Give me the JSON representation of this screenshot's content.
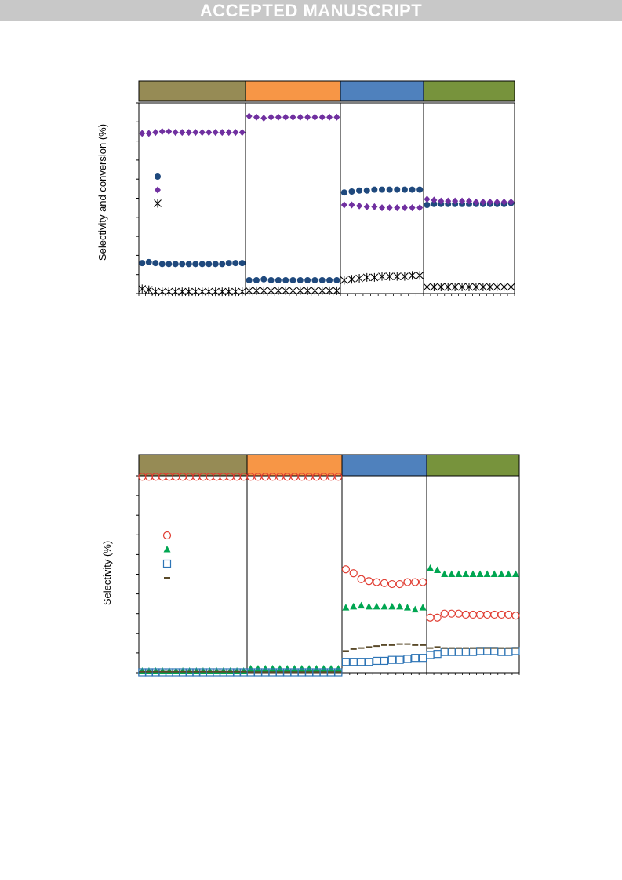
{
  "banner": {
    "text": "ACCEPTED MANUSCRIPT"
  },
  "colors": {
    "panel1": "#968b55",
    "panel2": "#f79646",
    "panel3": "#4f81bd",
    "panel4": "#77933c",
    "conversion_marker": "#1f497d",
    "diamond_marker": "#7030a0",
    "star_marker": "#000000",
    "circle_open": "#e03c31",
    "triangle": "#00a651",
    "square_open": "#2e75b6",
    "dash": "#5a4a2a"
  },
  "chart_data": [
    {
      "type": "scatter",
      "ylabel": "Selectivity and conversion (%)",
      "ylim": [
        0,
        100
      ],
      "grid": false,
      "panels": 4,
      "series": [
        {
          "marker": "circle-filled",
          "color": "#1f497d",
          "panels": [
            [
              16,
              16.5,
              16,
              15.5,
              15.5,
              15.5,
              15.5,
              15.5,
              15.5,
              15.5,
              15.5,
              15.5,
              15.5,
              16,
              16,
              16
            ],
            [
              7,
              7,
              7.5,
              7,
              7,
              7,
              7,
              7,
              7,
              7,
              7,
              7,
              7
            ],
            [
              53,
              53.5,
              54,
              54,
              54.5,
              54.5,
              54.5,
              54.5,
              54.5,
              54.5,
              54.5
            ],
            [
              46.5,
              47,
              47,
              47,
              47,
              47,
              47,
              47,
              47,
              47,
              47,
              47,
              47.5
            ]
          ]
        },
        {
          "marker": "diamond",
          "color": "#7030a0",
          "panels": [
            [
              84,
              84,
              84.5,
              85,
              85,
              84.5,
              84.5,
              84.5,
              84.5,
              84.5,
              84.5,
              84.5,
              84.5,
              84.5,
              84.5,
              84.5
            ],
            [
              93,
              92.5,
              92,
              92.5,
              92.5,
              92.5,
              92.5,
              92.5,
              92.5,
              92.5,
              92.5,
              92.5,
              92.5
            ],
            [
              46.5,
              46.5,
              46,
              45.5,
              45.5,
              45,
              45,
              45,
              45,
              45,
              45
            ],
            [
              49.5,
              49,
              48.5,
              48.5,
              48.5,
              48.5,
              48.5,
              48,
              48,
              48,
              48,
              48,
              48
            ]
          ]
        },
        {
          "marker": "asterisk",
          "color": "#000000",
          "panels": [
            [
              2.5,
              2,
              1,
              1,
              1,
              1,
              1,
              1,
              1,
              1,
              1,
              1,
              1,
              1,
              1,
              1
            ],
            [
              1.5,
              1.5,
              1.5,
              1.5,
              1.5,
              1.5,
              1.5,
              1.5,
              1.5,
              1.5,
              1.5,
              1.5,
              1.5
            ],
            [
              7,
              7.5,
              8,
              8.5,
              8.5,
              9,
              9,
              9,
              9,
              9.5,
              9.5
            ],
            [
              3.5,
              3.5,
              3.5,
              3.5,
              3.5,
              3.5,
              3.5,
              3.5,
              3.5,
              3.5,
              3.5,
              3.5,
              3.5
            ]
          ]
        }
      ]
    },
    {
      "type": "scatter",
      "ylabel": "Selectivity (%)",
      "ylim": [
        0,
        100
      ],
      "grid": false,
      "panels": 4,
      "series": [
        {
          "marker": "circle-open",
          "color": "#e03c31",
          "panels": [
            [
              99.5,
              99.5,
              99.5,
              99.5,
              99.5,
              99.5,
              99.5,
              99.5,
              99.5,
              99.5,
              99.5,
              99.5,
              99.5,
              99.5,
              99.5,
              99.5
            ],
            [
              99.5,
              99.5,
              99.5,
              99.5,
              99.5,
              99.5,
              99.5,
              99.5,
              99.5,
              99.5,
              99.5,
              99.5,
              99.5
            ],
            [
              52.5,
              50.5,
              47.5,
              46.5,
              46,
              45.5,
              45,
              45,
              46,
              46,
              46
            ],
            [
              28,
              28,
              30,
              30,
              30,
              29.5,
              29.5,
              29.5,
              29.5,
              29.5,
              29.5,
              29.5,
              29
            ]
          ]
        },
        {
          "marker": "triangle",
          "color": "#00a651",
          "panels": [
            [
              0.8,
              0.8,
              0.8,
              0.8,
              0.8,
              0.8,
              0.8,
              0.8,
              0.8,
              0.8,
              0.8,
              0.8,
              0.8,
              0.8,
              0.8,
              0.8
            ],
            [
              2,
              2,
              2,
              2,
              2,
              2,
              2,
              2,
              2,
              2,
              2,
              2,
              2
            ],
            [
              33,
              33.5,
              34,
              33.5,
              33.5,
              33.5,
              33.5,
              33.5,
              33,
              32,
              33
            ],
            [
              53,
              52,
              50,
              50,
              50,
              50,
              50,
              50,
              50,
              50,
              50,
              50,
              50
            ]
          ]
        },
        {
          "marker": "square-open",
          "color": "#2e75b6",
          "panels": [
            [
              0.2,
              0.2,
              0.2,
              0.2,
              0.2,
              0.2,
              0.2,
              0.2,
              0.2,
              0.2,
              0.2,
              0.2,
              0.2,
              0.2,
              0.2,
              0.2
            ],
            [
              0.2,
              0.2,
              0.2,
              0.2,
              0.2,
              0.2,
              0.2,
              0.2,
              0.2,
              0.2,
              0.2,
              0.2,
              0.2
            ],
            [
              5.5,
              5.5,
              5.5,
              5.5,
              6,
              6,
              6.5,
              6.5,
              7,
              7.5,
              7.5
            ],
            [
              9,
              9.5,
              10.5,
              10.5,
              10.5,
              10.5,
              10.5,
              11,
              11,
              11,
              10.5,
              10.5,
              11
            ]
          ]
        },
        {
          "marker": "dash",
          "color": "#5a4a2a",
          "panels": [
            [
              0.5,
              0.5,
              0.5,
              0.5,
              0.5,
              0.5,
              0.5,
              0.5,
              0.5,
              0.5,
              0.5,
              0.5,
              0.5,
              0.5,
              0.5,
              0.5
            ],
            [
              0.3,
              0.3,
              0.3,
              0.3,
              0.3,
              0.3,
              0.3,
              0.3,
              0.3,
              0.3,
              0.3,
              0.3,
              0.3
            ],
            [
              11,
              12,
              12.5,
              13,
              13.5,
              14,
              14,
              14.5,
              14.5,
              14,
              14
            ],
            [
              12.5,
              13,
              12.5,
              12.5,
              12.5,
              12.5,
              12.5,
              12.5,
              12.5,
              12.5,
              12.5,
              12.5,
              12.5
            ]
          ]
        }
      ]
    }
  ]
}
